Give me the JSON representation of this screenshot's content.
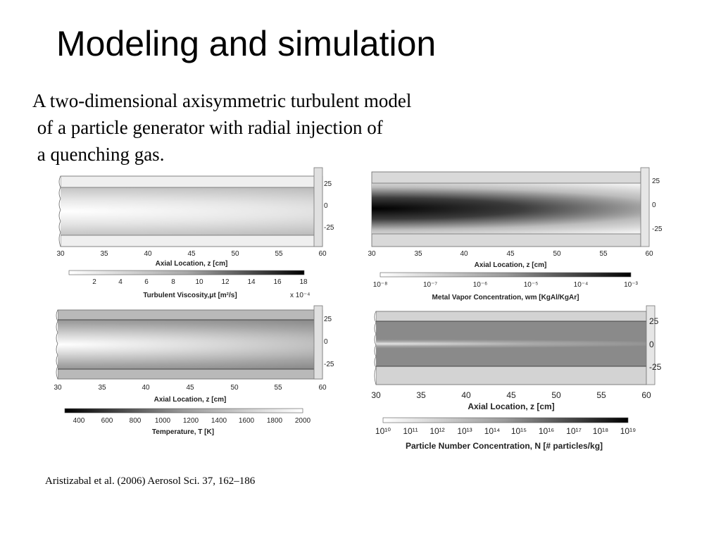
{
  "slide": {
    "title": "Modeling and simulation",
    "intro_lines": [
      "A two-dimensional axisymmetric turbulent model",
      " of a particle generator with radial injection of",
      " a quenching gas."
    ],
    "citation": "Aristizabal et al. (2006) Aerosol Sci. 37, 162–186"
  },
  "panels": [
    {
      "id": "turbulent-viscosity",
      "x_ticks": [
        "30",
        "35",
        "40",
        "45",
        "50",
        "55",
        "60"
      ],
      "y_ticks": [
        "25",
        "0",
        "-25"
      ],
      "x_label": "Axial Location, z [cm]",
      "colorbar_ticks": [
        "2",
        "4",
        "6",
        "8",
        "10",
        "12",
        "14",
        "16",
        "18"
      ],
      "colorbar_label": "Turbulent Viscosity,μt [m²/s]",
      "colorbar_multiplier": "x 10⁻⁴",
      "colorbar_direction": "light-to-dark"
    },
    {
      "id": "metal-vapor",
      "x_ticks": [
        "30",
        "35",
        "40",
        "45",
        "50",
        "55",
        "60"
      ],
      "y_ticks": [
        "25",
        "0",
        "-25"
      ],
      "x_label": "Axial Location, z [cm]",
      "colorbar_ticks": [
        "10⁻⁸",
        "10⁻⁷",
        "10⁻⁶",
        "10⁻⁵",
        "10⁻⁴",
        "10⁻³"
      ],
      "colorbar_label": "Metal Vapor Concentration, wm [KgAl/KgAr]",
      "colorbar_direction": "light-to-dark"
    },
    {
      "id": "temperature",
      "x_ticks": [
        "30",
        "35",
        "40",
        "45",
        "50",
        "55",
        "60"
      ],
      "y_ticks": [
        "25",
        "0",
        "-25"
      ],
      "x_label": "Axial Location, z [cm]",
      "colorbar_ticks": [
        "400",
        "600",
        "800",
        "1000",
        "1200",
        "1400",
        "1600",
        "1800",
        "2000"
      ],
      "colorbar_label": "Temperature, T [K]",
      "colorbar_direction": "dark-to-light"
    },
    {
      "id": "particle-number",
      "x_ticks": [
        "30",
        "35",
        "40",
        "45",
        "50",
        "55",
        "60"
      ],
      "y_ticks": [
        "25",
        "0",
        "-25"
      ],
      "x_label": "Axial Location, z [cm]",
      "colorbar_ticks": [
        "10¹⁰",
        "10¹¹",
        "10¹²",
        "10¹³",
        "10¹⁴",
        "10¹⁵",
        "10¹⁶",
        "10¹⁷",
        "10¹⁸",
        "10¹⁹"
      ],
      "colorbar_label": "Particle Number Concentration, N [# particles/kg]",
      "colorbar_direction": "light-to-dark"
    }
  ]
}
